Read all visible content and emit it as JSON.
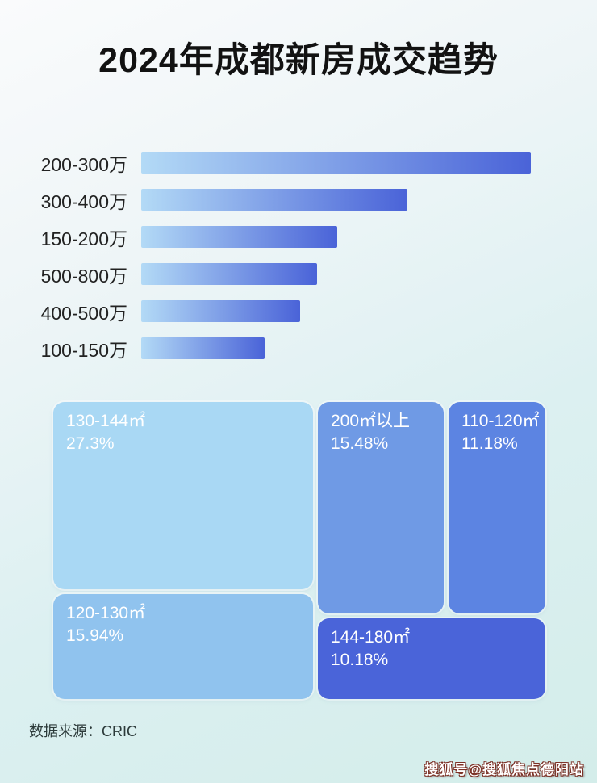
{
  "page": {
    "title": "2024年成都新房成交趋势",
    "source_note": "数据来源：CRIC",
    "watermark": "搜狐号@搜狐焦点德阳站"
  },
  "colors": {
    "background_top": "#fafbfc",
    "background_bottom": "#d4edea",
    "title_text": "#121212",
    "bar_label_text": "#222222",
    "bar_gradient_start": "#b3daf6",
    "bar_gradient_end": "#4a63d8",
    "treemap_text": "#ffffff",
    "watermark_text": "#ffffff",
    "watermark_outline": "#7c3126"
  },
  "chart_data": [
    {
      "type": "bar",
      "orientation": "horizontal",
      "title": "",
      "categories": [
        "200-300万",
        "300-400万",
        "150-200万",
        "500-800万",
        "400-500万",
        "100-150万"
      ],
      "values_relative_pct": [
        100,
        68.3,
        50.3,
        45.1,
        40.8,
        31.7
      ],
      "axis_shown": false,
      "grid": false,
      "legend": false
    },
    {
      "type": "treemap",
      "title": "",
      "items": [
        {
          "label": "130-144㎡",
          "value_pct": 27.3,
          "pct_label": "27.3%",
          "color": "#a9d8f4"
        },
        {
          "label": "120-130㎡",
          "value_pct": 15.94,
          "pct_label": "15.94%",
          "color": "#90c3ee"
        },
        {
          "label": "200㎡以上",
          "value_pct": 15.48,
          "pct_label": "15.48%",
          "color": "#6f9ae5"
        },
        {
          "label": "110-120㎡",
          "value_pct": 11.18,
          "pct_label": "11.18%",
          "color": "#5c84e2"
        },
        {
          "label": "144-180㎡",
          "value_pct": 10.18,
          "pct_label": "10.18%",
          "color": "#4a64d9"
        }
      ]
    }
  ]
}
